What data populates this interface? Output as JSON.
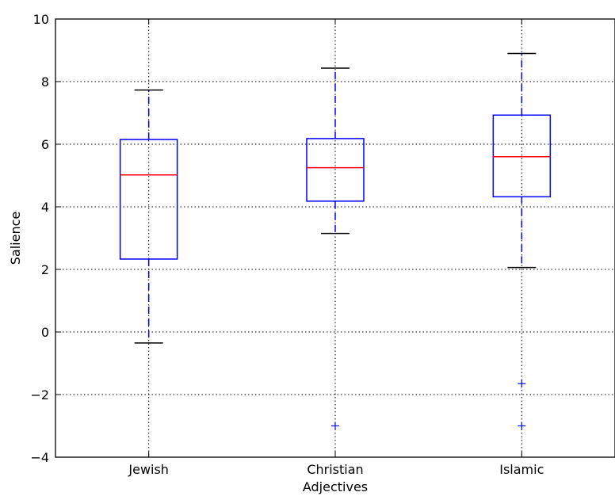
{
  "chart_data": {
    "type": "boxplot",
    "title": "",
    "xlabel": "Adjectives",
    "ylabel": "Salience",
    "ylim": [
      -4,
      10
    ],
    "yticks": [
      -4,
      -2,
      0,
      2,
      4,
      6,
      8,
      10
    ],
    "ytick_labels": [
      "−4",
      "−2",
      "0",
      "2",
      "4",
      "6",
      "8",
      "10"
    ],
    "grid": true,
    "categories": [
      "Jewish",
      "Christian",
      "Islamic"
    ],
    "boxes": [
      {
        "category": "Jewish",
        "whisker_low": -0.35,
        "q1": 2.33,
        "median": 5.02,
        "q3": 6.15,
        "whisker_high": 7.73,
        "outliers": []
      },
      {
        "category": "Christian",
        "whisker_low": 3.15,
        "q1": 4.18,
        "median": 5.25,
        "q3": 6.18,
        "whisker_high": 8.43,
        "outliers": [
          -3.0
        ]
      },
      {
        "category": "Islamic",
        "whisker_low": 2.06,
        "q1": 4.32,
        "median": 5.6,
        "q3": 6.93,
        "whisker_high": 8.9,
        "outliers": [
          -1.65,
          -3.0
        ]
      }
    ],
    "colors": {
      "box": "#0000ff",
      "median": "#ff0000",
      "whisker": "#0000ff",
      "cap": "#000000",
      "outlier": "#0000ff",
      "grid": "#000000"
    }
  }
}
